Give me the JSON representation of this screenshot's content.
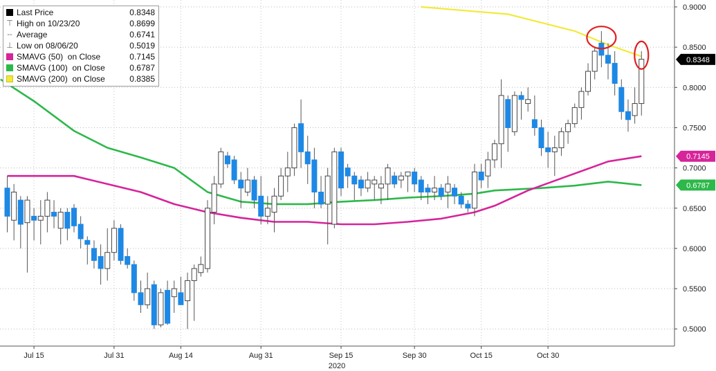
{
  "chart_data": {
    "type": "candlestick",
    "xlabel": "2020",
    "x_ticks": [
      "Jul 15",
      "Jul 31",
      "Aug 14",
      "Aug 31",
      "Sep 15",
      "Sep 30",
      "Oct 15",
      "Oct 30"
    ],
    "x_tick_index": [
      4,
      16,
      26,
      38,
      50,
      61,
      71,
      81
    ],
    "ylim": [
      0.49,
      0.91
    ],
    "y_ticks": [
      "0.9000",
      "0.8500",
      "0.8000",
      "0.7500",
      "0.7000",
      "0.6500",
      "0.6000",
      "0.5500",
      "0.5000"
    ],
    "y_tick_values": [
      0.9,
      0.85,
      0.8,
      0.75,
      0.7,
      0.65,
      0.6,
      0.55,
      0.5
    ],
    "grid": true,
    "legend_position": "top-left",
    "colors": {
      "up_body": "#ffffff",
      "up_border": "#444444",
      "down_body": "#1e88e5",
      "wick": "#555555",
      "sma50": "#d6249a",
      "sma100": "#2db84a",
      "sma200": "#f2ea3a"
    },
    "legend": [
      {
        "label": "Last Price",
        "value": "0.8348",
        "color": "#000000",
        "kind": "swatch"
      },
      {
        "label": "High on 10/23/20",
        "value": "0.8699",
        "kind": "glyph",
        "glyph": "⊤"
      },
      {
        "label": "Average",
        "value": "0.6741",
        "kind": "glyph",
        "glyph": "--"
      },
      {
        "label": "Low on 08/06/20",
        "value": "0.5019",
        "kind": "glyph",
        "glyph": "⊥"
      },
      {
        "label": "SMAVG (50)  on Close",
        "value": "0.7145",
        "color": "#d6249a",
        "kind": "swatch"
      },
      {
        "label": "SMAVG (100)  on Close",
        "value": "0.6787",
        "color": "#2db84a",
        "kind": "swatch"
      },
      {
        "label": "SMAVG (200)  on Close",
        "value": "0.8385",
        "color": "#f2ea3a",
        "kind": "swatch"
      }
    ],
    "last_labels": [
      {
        "text": "0.8348",
        "value": 0.8348,
        "bg": "#000000",
        "fg": "#ffffff"
      },
      {
        "text": "0.7145",
        "value": 0.7145,
        "bg": "#d6249a",
        "fg": "#ffffff"
      },
      {
        "text": "0.6787",
        "value": 0.6787,
        "bg": "#2db84a",
        "fg": "#ffffff"
      }
    ],
    "candles": [
      {
        "x": 0,
        "o": 0.675,
        "h": 0.69,
        "l": 0.62,
        "c": 0.64
      },
      {
        "x": 1,
        "o": 0.635,
        "h": 0.68,
        "l": 0.61,
        "c": 0.67
      },
      {
        "x": 2,
        "o": 0.66,
        "h": 0.665,
        "l": 0.6,
        "c": 0.63
      },
      {
        "x": 3,
        "o": 0.632,
        "h": 0.665,
        "l": 0.57,
        "c": 0.66
      },
      {
        "x": 4,
        "o": 0.64,
        "h": 0.65,
        "l": 0.61,
        "c": 0.635
      },
      {
        "x": 5,
        "o": 0.635,
        "h": 0.66,
        "l": 0.605,
        "c": 0.64
      },
      {
        "x": 6,
        "o": 0.64,
        "h": 0.67,
        "l": 0.62,
        "c": 0.66
      },
      {
        "x": 7,
        "o": 0.645,
        "h": 0.66,
        "l": 0.625,
        "c": 0.64
      },
      {
        "x": 8,
        "o": 0.625,
        "h": 0.65,
        "l": 0.605,
        "c": 0.645
      },
      {
        "x": 9,
        "o": 0.645,
        "h": 0.65,
        "l": 0.61,
        "c": 0.625
      },
      {
        "x": 10,
        "o": 0.65,
        "h": 0.655,
        "l": 0.62,
        "c": 0.628
      },
      {
        "x": 11,
        "o": 0.63,
        "h": 0.64,
        "l": 0.6,
        "c": 0.612
      },
      {
        "x": 12,
        "o": 0.61,
        "h": 0.615,
        "l": 0.58,
        "c": 0.605
      },
      {
        "x": 13,
        "o": 0.6,
        "h": 0.61,
        "l": 0.575,
        "c": 0.585
      },
      {
        "x": 14,
        "o": 0.59,
        "h": 0.605,
        "l": 0.555,
        "c": 0.575
      },
      {
        "x": 15,
        "o": 0.575,
        "h": 0.625,
        "l": 0.56,
        "c": 0.595
      },
      {
        "x": 16,
        "o": 0.595,
        "h": 0.635,
        "l": 0.585,
        "c": 0.625
      },
      {
        "x": 17,
        "o": 0.625,
        "h": 0.63,
        "l": 0.58,
        "c": 0.585
      },
      {
        "x": 18,
        "o": 0.59,
        "h": 0.6,
        "l": 0.575,
        "c": 0.58
      },
      {
        "x": 19,
        "o": 0.58,
        "h": 0.585,
        "l": 0.535,
        "c": 0.545
      },
      {
        "x": 20,
        "o": 0.545,
        "h": 0.56,
        "l": 0.52,
        "c": 0.53
      },
      {
        "x": 21,
        "o": 0.53,
        "h": 0.57,
        "l": 0.525,
        "c": 0.55
      },
      {
        "x": 22,
        "o": 0.555,
        "h": 0.56,
        "l": 0.5,
        "c": 0.505
      },
      {
        "x": 23,
        "o": 0.505,
        "h": 0.55,
        "l": 0.502,
        "c": 0.545
      },
      {
        "x": 24,
        "o": 0.548,
        "h": 0.56,
        "l": 0.505,
        "c": 0.507
      },
      {
        "x": 25,
        "o": 0.54,
        "h": 0.56,
        "l": 0.52,
        "c": 0.55
      },
      {
        "x": 26,
        "o": 0.545,
        "h": 0.565,
        "l": 0.53,
        "c": 0.53
      },
      {
        "x": 27,
        "o": 0.535,
        "h": 0.57,
        "l": 0.5,
        "c": 0.56
      },
      {
        "x": 28,
        "o": 0.56,
        "h": 0.58,
        "l": 0.51,
        "c": 0.575
      },
      {
        "x": 29,
        "o": 0.57,
        "h": 0.59,
        "l": 0.565,
        "c": 0.58
      },
      {
        "x": 30,
        "o": 0.575,
        "h": 0.66,
        "l": 0.57,
        "c": 0.65
      },
      {
        "x": 31,
        "o": 0.645,
        "h": 0.69,
        "l": 0.63,
        "c": 0.68
      },
      {
        "x": 32,
        "o": 0.68,
        "h": 0.725,
        "l": 0.675,
        "c": 0.72
      },
      {
        "x": 33,
        "o": 0.715,
        "h": 0.72,
        "l": 0.7,
        "c": 0.705
      },
      {
        "x": 34,
        "o": 0.71,
        "h": 0.715,
        "l": 0.68,
        "c": 0.685
      },
      {
        "x": 35,
        "o": 0.685,
        "h": 0.695,
        "l": 0.65,
        "c": 0.675
      },
      {
        "x": 36,
        "o": 0.67,
        "h": 0.7,
        "l": 0.665,
        "c": 0.685
      },
      {
        "x": 37,
        "o": 0.685,
        "h": 0.69,
        "l": 0.65,
        "c": 0.66
      },
      {
        "x": 38,
        "o": 0.665,
        "h": 0.69,
        "l": 0.63,
        "c": 0.64
      },
      {
        "x": 39,
        "o": 0.64,
        "h": 0.665,
        "l": 0.63,
        "c": 0.65
      },
      {
        "x": 40,
        "o": 0.645,
        "h": 0.675,
        "l": 0.62,
        "c": 0.665
      },
      {
        "x": 41,
        "o": 0.665,
        "h": 0.7,
        "l": 0.66,
        "c": 0.69
      },
      {
        "x": 42,
        "o": 0.69,
        "h": 0.72,
        "l": 0.67,
        "c": 0.7
      },
      {
        "x": 43,
        "o": 0.7,
        "h": 0.755,
        "l": 0.69,
        "c": 0.75
      },
      {
        "x": 44,
        "o": 0.755,
        "h": 0.785,
        "l": 0.7,
        "c": 0.72
      },
      {
        "x": 45,
        "o": 0.72,
        "h": 0.74,
        "l": 0.68,
        "c": 0.705
      },
      {
        "x": 46,
        "o": 0.71,
        "h": 0.725,
        "l": 0.65,
        "c": 0.67
      },
      {
        "x": 47,
        "o": 0.67,
        "h": 0.69,
        "l": 0.65,
        "c": 0.655
      },
      {
        "x": 48,
        "o": 0.655,
        "h": 0.7,
        "l": 0.605,
        "c": 0.69
      },
      {
        "x": 49,
        "o": 0.63,
        "h": 0.725,
        "l": 0.625,
        "c": 0.72
      },
      {
        "x": 50,
        "o": 0.72,
        "h": 0.725,
        "l": 0.665,
        "c": 0.675
      },
      {
        "x": 51,
        "o": 0.7,
        "h": 0.705,
        "l": 0.675,
        "c": 0.69
      },
      {
        "x": 52,
        "o": 0.69,
        "h": 0.695,
        "l": 0.66,
        "c": 0.68
      },
      {
        "x": 53,
        "o": 0.685,
        "h": 0.69,
        "l": 0.665,
        "c": 0.675
      },
      {
        "x": 54,
        "o": 0.675,
        "h": 0.695,
        "l": 0.67,
        "c": 0.685
      },
      {
        "x": 55,
        "o": 0.68,
        "h": 0.69,
        "l": 0.66,
        "c": 0.685
      },
      {
        "x": 56,
        "o": 0.675,
        "h": 0.69,
        "l": 0.655,
        "c": 0.68
      },
      {
        "x": 57,
        "o": 0.68,
        "h": 0.705,
        "l": 0.66,
        "c": 0.7
      },
      {
        "x": 58,
        "o": 0.69,
        "h": 0.695,
        "l": 0.675,
        "c": 0.68
      },
      {
        "x": 59,
        "o": 0.685,
        "h": 0.695,
        "l": 0.675,
        "c": 0.69
      },
      {
        "x": 60,
        "o": 0.69,
        "h": 0.695,
        "l": 0.67,
        "c": 0.695
      },
      {
        "x": 61,
        "o": 0.695,
        "h": 0.7,
        "l": 0.67,
        "c": 0.68
      },
      {
        "x": 62,
        "o": 0.685,
        "h": 0.69,
        "l": 0.66,
        "c": 0.67
      },
      {
        "x": 63,
        "o": 0.675,
        "h": 0.68,
        "l": 0.655,
        "c": 0.67
      },
      {
        "x": 64,
        "o": 0.67,
        "h": 0.69,
        "l": 0.66,
        "c": 0.675
      },
      {
        "x": 65,
        "o": 0.675,
        "h": 0.68,
        "l": 0.66,
        "c": 0.665
      },
      {
        "x": 66,
        "o": 0.67,
        "h": 0.69,
        "l": 0.65,
        "c": 0.68
      },
      {
        "x": 67,
        "o": 0.675,
        "h": 0.68,
        "l": 0.655,
        "c": 0.665
      },
      {
        "x": 68,
        "o": 0.665,
        "h": 0.67,
        "l": 0.65,
        "c": 0.655
      },
      {
        "x": 69,
        "o": 0.655,
        "h": 0.66,
        "l": 0.645,
        "c": 0.65
      },
      {
        "x": 70,
        "o": 0.65,
        "h": 0.705,
        "l": 0.64,
        "c": 0.695
      },
      {
        "x": 71,
        "o": 0.695,
        "h": 0.705,
        "l": 0.675,
        "c": 0.685
      },
      {
        "x": 72,
        "o": 0.69,
        "h": 0.72,
        "l": 0.675,
        "c": 0.71
      },
      {
        "x": 73,
        "o": 0.71,
        "h": 0.735,
        "l": 0.7,
        "c": 0.73
      },
      {
        "x": 74,
        "o": 0.73,
        "h": 0.81,
        "l": 0.7,
        "c": 0.79
      },
      {
        "x": 75,
        "o": 0.785,
        "h": 0.79,
        "l": 0.72,
        "c": 0.75
      },
      {
        "x": 76,
        "o": 0.745,
        "h": 0.795,
        "l": 0.74,
        "c": 0.79
      },
      {
        "x": 77,
        "o": 0.79,
        "h": 0.795,
        "l": 0.76,
        "c": 0.785
      },
      {
        "x": 78,
        "o": 0.78,
        "h": 0.8,
        "l": 0.77,
        "c": 0.785
      },
      {
        "x": 79,
        "o": 0.76,
        "h": 0.79,
        "l": 0.74,
        "c": 0.75
      },
      {
        "x": 80,
        "o": 0.75,
        "h": 0.76,
        "l": 0.715,
        "c": 0.725
      },
      {
        "x": 81,
        "o": 0.725,
        "h": 0.745,
        "l": 0.7,
        "c": 0.72
      },
      {
        "x": 82,
        "o": 0.72,
        "h": 0.74,
        "l": 0.69,
        "c": 0.725
      },
      {
        "x": 83,
        "o": 0.725,
        "h": 0.75,
        "l": 0.715,
        "c": 0.745
      },
      {
        "x": 84,
        "o": 0.745,
        "h": 0.76,
        "l": 0.73,
        "c": 0.755
      },
      {
        "x": 85,
        "o": 0.755,
        "h": 0.78,
        "l": 0.75,
        "c": 0.775
      },
      {
        "x": 86,
        "o": 0.775,
        "h": 0.8,
        "l": 0.76,
        "c": 0.795
      },
      {
        "x": 87,
        "o": 0.795,
        "h": 0.83,
        "l": 0.79,
        "c": 0.82
      },
      {
        "x": 88,
        "o": 0.82,
        "h": 0.85,
        "l": 0.81,
        "c": 0.845
      },
      {
        "x": 89,
        "o": 0.855,
        "h": 0.87,
        "l": 0.825,
        "c": 0.84
      },
      {
        "x": 90,
        "o": 0.84,
        "h": 0.855,
        "l": 0.81,
        "c": 0.83
      },
      {
        "x": 91,
        "o": 0.83,
        "h": 0.845,
        "l": 0.79,
        "c": 0.805
      },
      {
        "x": 92,
        "o": 0.8,
        "h": 0.81,
        "l": 0.76,
        "c": 0.77
      },
      {
        "x": 93,
        "o": 0.77,
        "h": 0.785,
        "l": 0.745,
        "c": 0.76
      },
      {
        "x": 94,
        "o": 0.765,
        "h": 0.8,
        "l": 0.755,
        "c": 0.78
      },
      {
        "x": 95,
        "o": 0.78,
        "h": 0.845,
        "l": 0.765,
        "c": 0.835
      }
    ],
    "sma200": [
      [
        62,
        0.9
      ],
      [
        75,
        0.891
      ],
      [
        85,
        0.87
      ],
      [
        90,
        0.853
      ],
      [
        95,
        0.8385
      ]
    ],
    "sma50": [
      [
        0,
        0.69
      ],
      [
        10,
        0.69
      ],
      [
        15,
        0.68
      ],
      [
        20,
        0.67
      ],
      [
        25,
        0.655
      ],
      [
        30,
        0.645
      ],
      [
        35,
        0.638
      ],
      [
        40,
        0.633
      ],
      [
        45,
        0.633
      ],
      [
        50,
        0.63
      ],
      [
        55,
        0.63
      ],
      [
        60,
        0.633
      ],
      [
        65,
        0.637
      ],
      [
        70,
        0.645
      ],
      [
        73,
        0.653
      ],
      [
        78,
        0.672
      ],
      [
        84,
        0.69
      ],
      [
        90,
        0.708
      ],
      [
        95,
        0.7145
      ]
    ],
    "sma100": [
      [
        -1,
        0.81
      ],
      [
        4,
        0.783
      ],
      [
        10,
        0.746
      ],
      [
        15,
        0.725
      ],
      [
        20,
        0.713
      ],
      [
        25,
        0.7
      ],
      [
        30,
        0.67
      ],
      [
        35,
        0.658
      ],
      [
        40,
        0.655
      ],
      [
        45,
        0.655
      ],
      [
        50,
        0.658
      ],
      [
        55,
        0.66
      ],
      [
        60,
        0.663
      ],
      [
        65,
        0.665
      ],
      [
        70,
        0.668
      ],
      [
        73,
        0.672
      ],
      [
        80,
        0.675
      ],
      [
        85,
        0.678
      ],
      [
        90,
        0.683
      ],
      [
        95,
        0.6787
      ]
    ],
    "annotations": [
      {
        "type": "ellipse",
        "x": 89,
        "y": 0.862,
        "stroke": "#e02020"
      },
      {
        "type": "ellipse",
        "x": 95,
        "y": 0.84,
        "stroke": "#e02020"
      }
    ]
  }
}
